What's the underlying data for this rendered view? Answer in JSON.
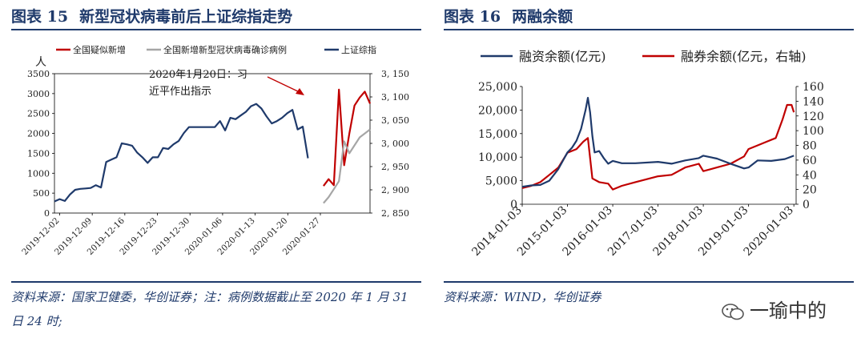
{
  "left": {
    "fig_label": "图表 15",
    "title": "新型冠状病毒前后上证综指走势",
    "source": "资料来源：国家卫健委，华创证券；注：病例数据截止至 2020 年 1 月 31 日 24 时;",
    "colors": {
      "suspected": "#c00000",
      "confirmed": "#a6a6a6",
      "index": "#1f3a6b"
    }
  },
  "right": {
    "fig_label": "图表 16",
    "title": "两融余额",
    "source": "资料来源：WIND，华创证券",
    "colors": {
      "margin": "#1f3a6b",
      "short": "#c00000"
    }
  },
  "watermark": "一瑜中的",
  "chart_data": [
    {
      "type": "line",
      "title": "新型冠状病毒前后上证综指走势",
      "ylabel": "人",
      "ylim": [
        0,
        3500
      ],
      "y2lim": [
        2850,
        3150
      ],
      "y_ticks": [
        "0",
        "500",
        "1000",
        "1500",
        "2000",
        "2500",
        "3000",
        "3500"
      ],
      "y2_ticks": [
        "2, 850",
        "2, 900",
        "2, 950",
        "3, 000",
        "3, 050",
        "3, 100",
        "3, 150"
      ],
      "x_ticks": [
        "2019-12-02",
        "2019-12-09",
        "2019-12-16",
        "2019-12-23",
        "2019-12-30",
        "2020-01-06",
        "2020-01-13",
        "2020-01-20",
        "2020-01-27"
      ],
      "annotation": "2020年1月20日：习近平作出指示",
      "legend_position": "top",
      "series": [
        {
          "name": "全国疑似新增",
          "axis": "left",
          "x": [
            52,
            53,
            54,
            55,
            56,
            57,
            58,
            59,
            60,
            61
          ],
          "values": [
            680,
            850,
            700,
            3100,
            1200,
            2000,
            2700,
            2900,
            3050,
            2750
          ]
        },
        {
          "name": "全国新增新型冠状病毒确诊病例",
          "axis": "left",
          "x": [
            52,
            53,
            54,
            55,
            56,
            57,
            58,
            59,
            60,
            61
          ],
          "values": [
            250,
            400,
            600,
            800,
            1800,
            1500,
            1700,
            1900,
            2000,
            2100
          ]
        },
        {
          "name": "上证综指",
          "axis": "right",
          "x": [
            0,
            1,
            2,
            3,
            4,
            5,
            6,
            7,
            8,
            9,
            10,
            11,
            12,
            13,
            14,
            15,
            16,
            17,
            18,
            19,
            20,
            21,
            22,
            23,
            24,
            25,
            26,
            27,
            28,
            29,
            30,
            31,
            32,
            33,
            34,
            35,
            36,
            37,
            38,
            39,
            40,
            41,
            42,
            43,
            44,
            45,
            46,
            47,
            48,
            49
          ],
          "values": [
            2875,
            2880,
            2876,
            2890,
            2900,
            2902,
            2903,
            2904,
            2910,
            2905,
            2960,
            2965,
            2970,
            3000,
            2998,
            2995,
            2980,
            2970,
            2958,
            2970,
            2970,
            2990,
            2988,
            2998,
            3005,
            3022,
            3035,
            3035,
            3035,
            3035,
            3035,
            3035,
            3048,
            3028,
            3055,
            3052,
            3060,
            3068,
            3080,
            3085,
            3075,
            3058,
            3043,
            3048,
            3055,
            3065,
            3072,
            3030,
            3036,
            2968
          ]
        }
      ]
    },
    {
      "type": "line",
      "title": "两融余额",
      "ylim": [
        0,
        25000
      ],
      "y2lim": [
        0,
        160
      ],
      "y_ticks": [
        "0",
        "5,000",
        "10,000",
        "15,000",
        "20,000",
        "25,000"
      ],
      "y2_ticks": [
        "0",
        "20",
        "40",
        "60",
        "80",
        "100",
        "120",
        "140",
        "160"
      ],
      "x_ticks": [
        "2014-01-03",
        "2015-01-03",
        "2016-01-03",
        "2017-01-03",
        "2018-01-03",
        "2019-01-03",
        "2020-01-03"
      ],
      "legend_position": "top",
      "series": [
        {
          "name": "融资余额(亿元)",
          "axis": "left",
          "x": [
            2014.0,
            2014.2,
            2014.4,
            2014.6,
            2014.8,
            2015.0,
            2015.1,
            2015.2,
            2015.3,
            2015.4,
            2015.45,
            2015.5,
            2015.55,
            2015.6,
            2015.7,
            2015.8,
            2015.9,
            2016.0,
            2016.2,
            2016.5,
            2017.0,
            2017.3,
            2017.6,
            2017.9,
            2018.0,
            2018.3,
            2018.6,
            2018.9,
            2019.0,
            2019.2,
            2019.5,
            2019.8,
            2020.0
          ],
          "values": [
            3700,
            4000,
            4100,
            5000,
            7500,
            11000,
            12000,
            13500,
            16000,
            20000,
            22600,
            19500,
            14500,
            11000,
            11300,
            9800,
            8600,
            9200,
            8700,
            8700,
            9000,
            8600,
            9300,
            9800,
            10300,
            9700,
            8600,
            7600,
            7800,
            9300,
            9200,
            9600,
            10300
          ]
        },
        {
          "name": "融券余额(亿元，右轴)",
          "axis": "right",
          "x": [
            2014.0,
            2014.2,
            2014.4,
            2014.6,
            2014.8,
            2015.0,
            2015.2,
            2015.35,
            2015.45,
            2015.55,
            2015.7,
            2015.9,
            2016.0,
            2016.2,
            2016.5,
            2017.0,
            2017.3,
            2017.6,
            2017.9,
            2018.0,
            2018.3,
            2018.6,
            2018.9,
            2019.0,
            2019.2,
            2019.4,
            2019.6,
            2019.75,
            2019.85,
            2019.95,
            2020.0
          ],
          "values": [
            22,
            25,
            30,
            40,
            50,
            70,
            75,
            85,
            90,
            35,
            30,
            28,
            20,
            25,
            30,
            38,
            40,
            50,
            55,
            45,
            50,
            55,
            65,
            75,
            80,
            85,
            90,
            115,
            135,
            135,
            125
          ]
        }
      ]
    }
  ]
}
